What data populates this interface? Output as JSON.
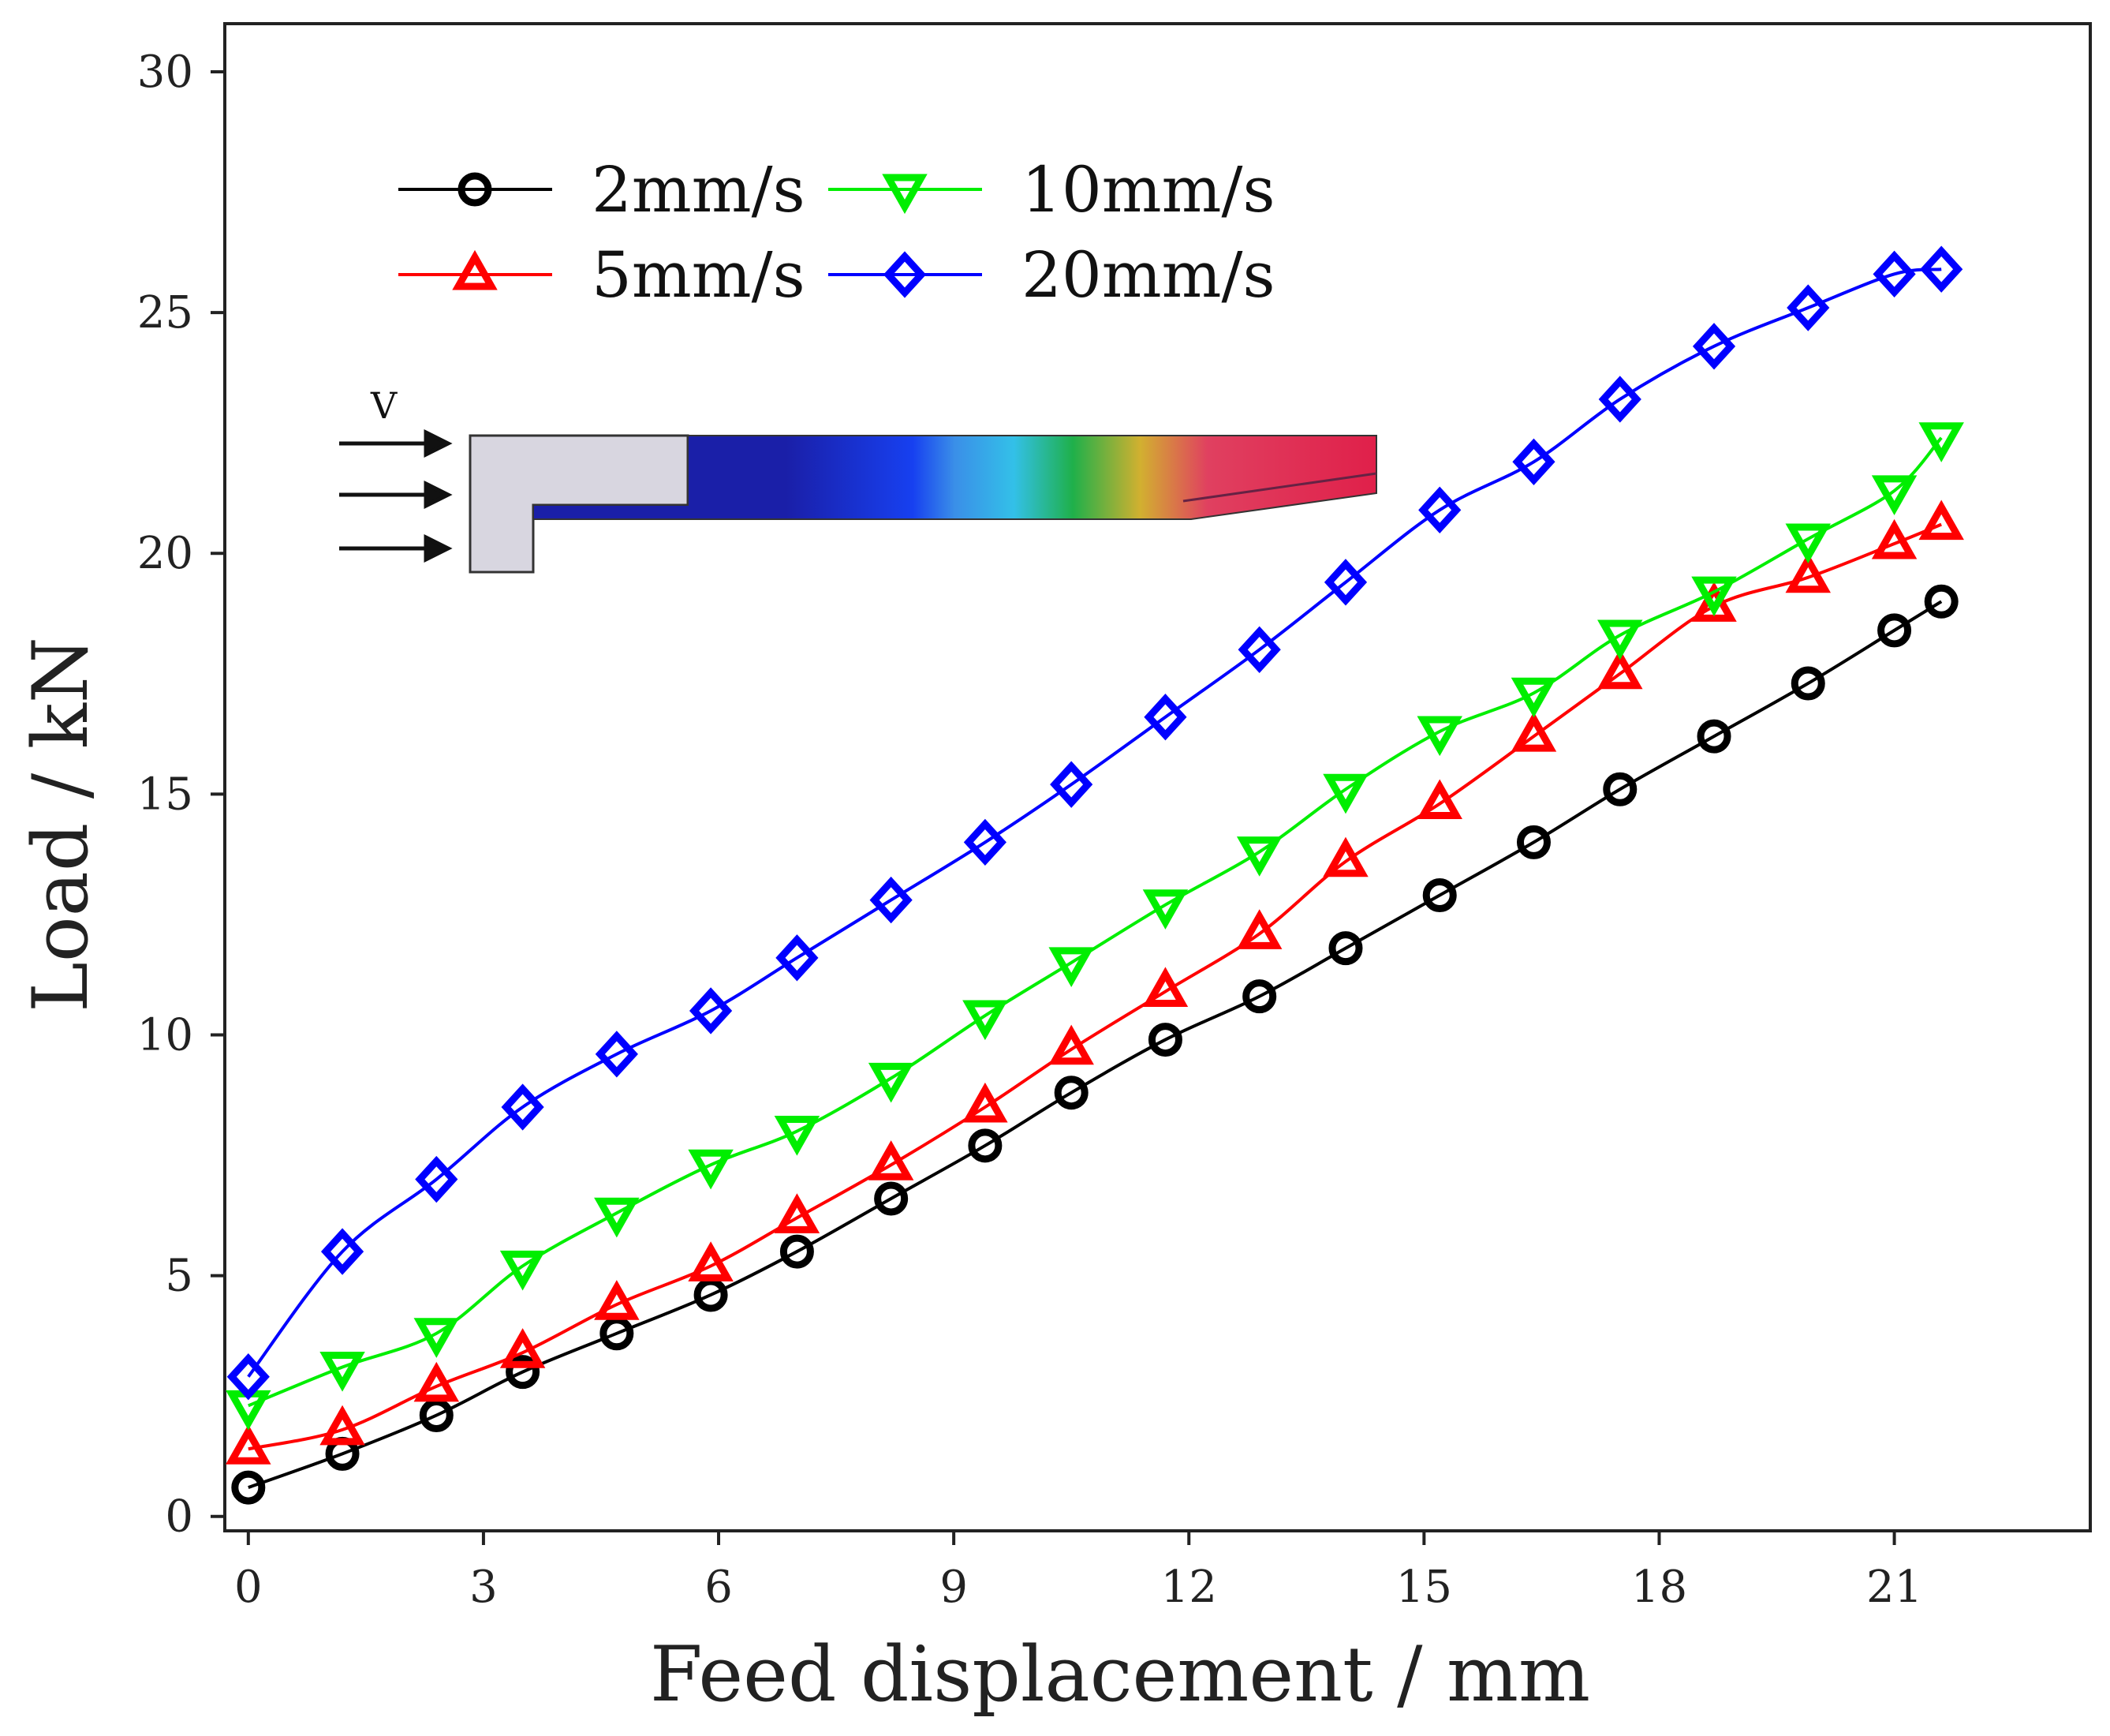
{
  "chart_data": {
    "type": "line",
    "xlabel": "Feed displacement / mm",
    "ylabel": "Load / kN",
    "xlim": [
      -0.3,
      23.5
    ],
    "ylim": [
      -0.3,
      31
    ],
    "xticks": [
      0,
      3,
      6,
      9,
      12,
      15,
      18,
      21
    ],
    "yticks": [
      0,
      5,
      10,
      15,
      20,
      25,
      30
    ],
    "grid": false,
    "legend_position": "top-left",
    "x": [
      0,
      1.2,
      2.4,
      3.5,
      4.7,
      5.9,
      7.0,
      8.2,
      9.4,
      10.5,
      11.7,
      12.9,
      14.0,
      15.2,
      16.4,
      17.5,
      18.7,
      19.9,
      21.0,
      21.6
    ],
    "series": [
      {
        "name": "2mm/s",
        "color": "#000000",
        "marker": "circle",
        "values": [
          0.6,
          1.3,
          2.1,
          3.0,
          3.8,
          4.6,
          5.5,
          6.6,
          7.7,
          8.8,
          9.9,
          10.8,
          11.8,
          12.9,
          14.0,
          15.1,
          16.2,
          17.3,
          18.4,
          19.0
        ]
      },
      {
        "name": "5mm/s",
        "color": "#ff0000",
        "marker": "triangle-up",
        "values": [
          1.4,
          1.8,
          2.7,
          3.4,
          4.4,
          5.2,
          6.2,
          7.3,
          8.5,
          9.7,
          10.9,
          12.1,
          13.6,
          14.8,
          16.2,
          17.5,
          18.9,
          19.5,
          20.2,
          20.6
        ]
      },
      {
        "name": "10mm/s",
        "color": "#00ee00",
        "marker": "triangle-down",
        "values": [
          2.3,
          3.1,
          3.8,
          5.2,
          6.3,
          7.3,
          8.0,
          9.1,
          10.4,
          11.5,
          12.7,
          13.8,
          15.1,
          16.3,
          17.1,
          18.3,
          19.2,
          20.3,
          21.3,
          22.4
        ]
      },
      {
        "name": "20mm/s",
        "color": "#0000ff",
        "marker": "diamond",
        "values": [
          2.9,
          5.5,
          7.0,
          8.5,
          9.6,
          10.5,
          11.6,
          12.8,
          14.0,
          15.2,
          16.6,
          18.0,
          19.4,
          20.9,
          21.9,
          23.2,
          24.3,
          25.1,
          25.8,
          25.9
        ]
      }
    ],
    "annotations": [
      "V"
    ],
    "colors": {
      "inset_die": "#d8d6e0",
      "inset_gradient": [
        "#1a1fa8",
        "#1a1fa8",
        "#1740f0",
        "#3a8fe8",
        "#33c0e8",
        "#1fb04a",
        "#d2b030",
        "#e04060",
        "#e0204a"
      ]
    }
  }
}
